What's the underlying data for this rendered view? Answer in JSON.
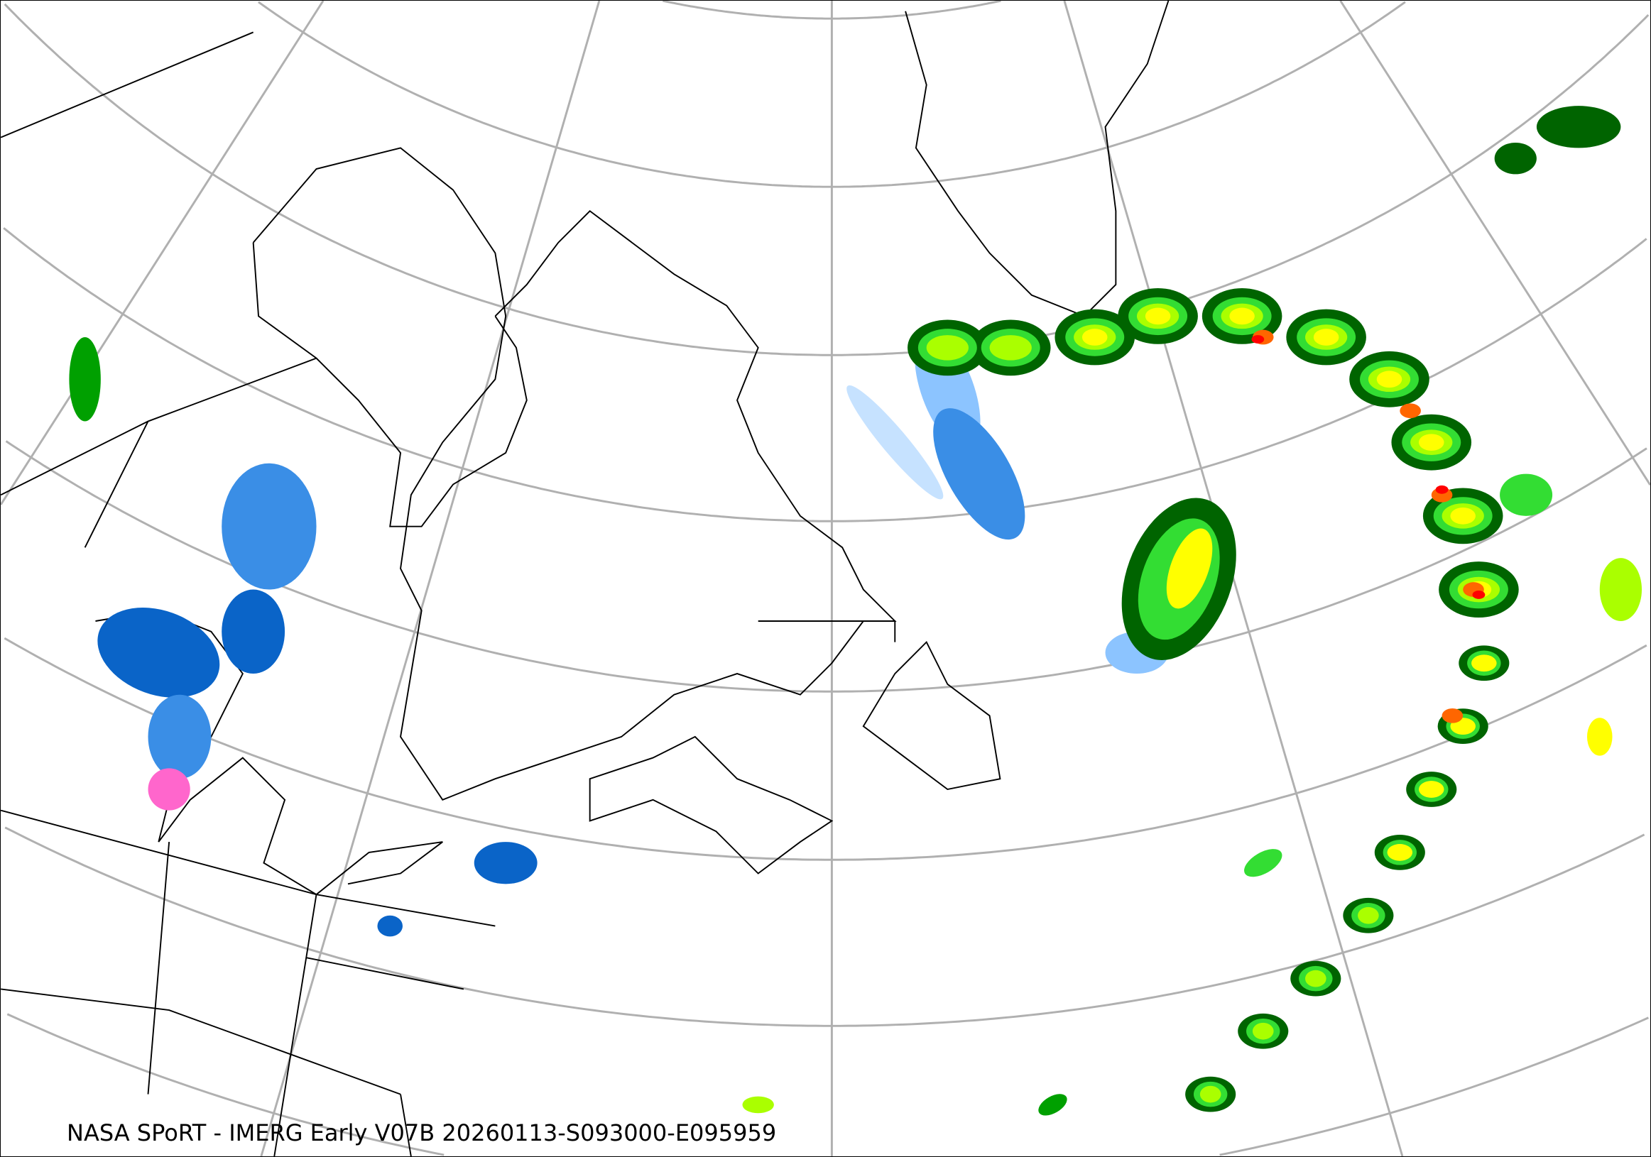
{
  "caption": "NASA SPoRT - IMERG Early V07B 20260113-S093000-E095959",
  "map": {
    "projection": "conic",
    "graticule_color": "#b0b0b0",
    "coastline_color": "#000000",
    "precip_colors": [
      "#c6e2ff",
      "#8cc4ff",
      "#3a8ee6",
      "#0a64c8",
      "#ff66cc",
      "#006400",
      "#00a000",
      "#33dd33",
      "#aaff00",
      "#ffff00",
      "#ffb000",
      "#ff6600",
      "#ff0000"
    ]
  }
}
